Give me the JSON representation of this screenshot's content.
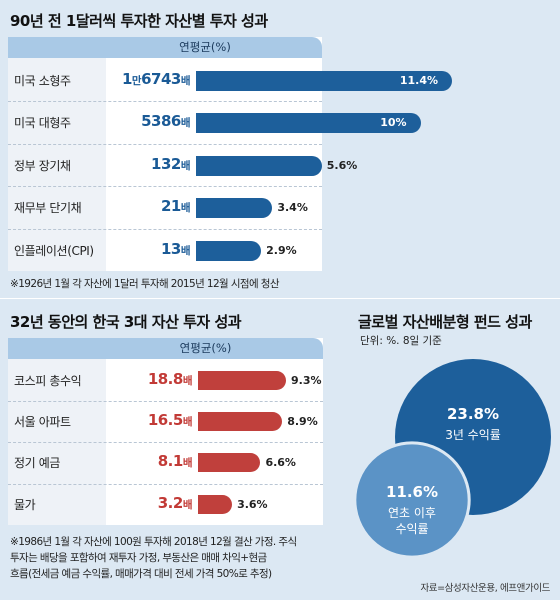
{
  "chart_data": [
    {
      "type": "bar",
      "title": "90년 전 1달러씩 투자한 자산별 투자 성과",
      "column_header": "연평균(%)",
      "categories": [
        "미국 소형주",
        "미국 대형주",
        "정부 장기채",
        "재무부 단기채",
        "인플레이션(CPI)"
      ],
      "multiples": [
        "1만6743배",
        "5386배",
        "132배",
        "21배",
        "13배"
      ],
      "values": [
        11.4,
        10,
        5.6,
        3.4,
        2.9
      ],
      "value_labels": [
        "11.4%",
        "10%",
        "5.6%",
        "3.4%",
        "2.9%"
      ],
      "note": "※1926년 1월 각 자산에 1달러 투자해 2015년 12월 시점에 청산",
      "color": "#1d5f9b"
    },
    {
      "type": "bar",
      "title": "32년 동안의 한국 3대 자산 투자 성과",
      "column_header": "연평균(%)",
      "categories": [
        "코스피 총수익",
        "서울 아파트",
        "정기 예금",
        "물가"
      ],
      "multiples": [
        "18.8배",
        "16.5배",
        "8.1배",
        "3.2배"
      ],
      "values": [
        9.3,
        8.9,
        6.6,
        3.6
      ],
      "value_labels": [
        "9.3%",
        "8.9%",
        "6.6%",
        "3.6%"
      ],
      "note_lines": [
        "※1986년 1월 각 자산에 100원 투자해 2018년 12월 결산 가정. 주식",
        "투자는 배당을 포함하여 재투자 가정, 부동산은 매매 차익+현금",
        "흐름(전세금 예금 수익률, 매매가격 대비 전세 가격 50%로 추정)"
      ],
      "color": "#c0403c"
    },
    {
      "type": "bubble",
      "title": "글로벌 자산배분형 펀드 성과",
      "subtitle": "단위: %. 8일 기준",
      "categories": [
        "3년 수익률",
        "연초 이후 수익률"
      ],
      "values": [
        23.8,
        11.6
      ],
      "value_labels": [
        "23.8%",
        "11.6%"
      ],
      "label_lines": [
        [
          "3년 수익률"
        ],
        [
          "연초 이후",
          "수익률"
        ]
      ],
      "colors": [
        "#1d5f9b",
        "#5b93c6"
      ]
    }
  ],
  "source": "자료=삼성자산운용, 에프앤가이드"
}
